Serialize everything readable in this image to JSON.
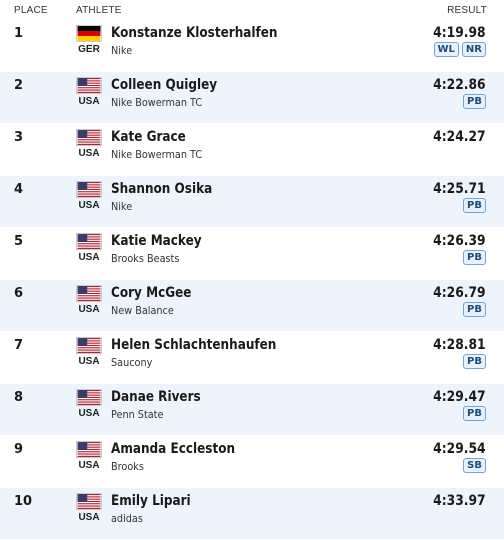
{
  "header": {
    "place": "PLACE",
    "athlete": "ATHLETE",
    "result": "RESULT"
  },
  "rows": [
    {
      "place": "1",
      "name": "Konstanze Klosterhalfen",
      "team": "Nike",
      "country": "GER",
      "flag": "ger-flag-icon",
      "result": "4:19.98",
      "badges": [
        "WL",
        "NR"
      ]
    },
    {
      "place": "2",
      "name": "Colleen Quigley",
      "team": "Nike Bowerman TC",
      "country": "USA",
      "flag": "usa-flag-icon",
      "result": "4:22.86",
      "badges": [
        "PB"
      ]
    },
    {
      "place": "3",
      "name": "Kate Grace",
      "team": "Nike Bowerman TC",
      "country": "USA",
      "flag": "usa-flag-icon",
      "result": "4:24.27",
      "badges": []
    },
    {
      "place": "4",
      "name": "Shannon Osika",
      "team": "Nike",
      "country": "USA",
      "flag": "usa-flag-icon",
      "result": "4:25.71",
      "badges": [
        "PB"
      ]
    },
    {
      "place": "5",
      "name": "Katie Mackey",
      "team": "Brooks Beasts",
      "country": "USA",
      "flag": "usa-flag-icon",
      "result": "4:26.39",
      "badges": [
        "PB"
      ]
    },
    {
      "place": "6",
      "name": "Cory McGee",
      "team": "New Balance",
      "country": "USA",
      "flag": "usa-flag-icon",
      "result": "4:26.79",
      "badges": [
        "PB"
      ]
    },
    {
      "place": "7",
      "name": "Helen Schlachtenhaufen",
      "team": "Saucony",
      "country": "USA",
      "flag": "usa-flag-icon",
      "result": "4:28.81",
      "badges": [
        "PB"
      ]
    },
    {
      "place": "8",
      "name": "Danae Rivers",
      "team": "Penn State",
      "country": "USA",
      "flag": "usa-flag-icon",
      "result": "4:29.47",
      "badges": [
        "PB"
      ]
    },
    {
      "place": "9",
      "name": "Amanda Eccleston",
      "team": "Brooks",
      "country": "USA",
      "flag": "usa-flag-icon",
      "result": "4:29.54",
      "badges": [
        "SB"
      ]
    },
    {
      "place": "10",
      "name": "Emily Lipari",
      "team": "adidas",
      "country": "USA",
      "flag": "usa-flag-icon",
      "result": "4:33.97",
      "badges": []
    }
  ],
  "colors": {
    "row_alt_bg": "#eef4fb",
    "badge_border": "#6ea6d8",
    "badge_bg": "#e6f1fb",
    "badge_text": "#1d4d7a"
  }
}
